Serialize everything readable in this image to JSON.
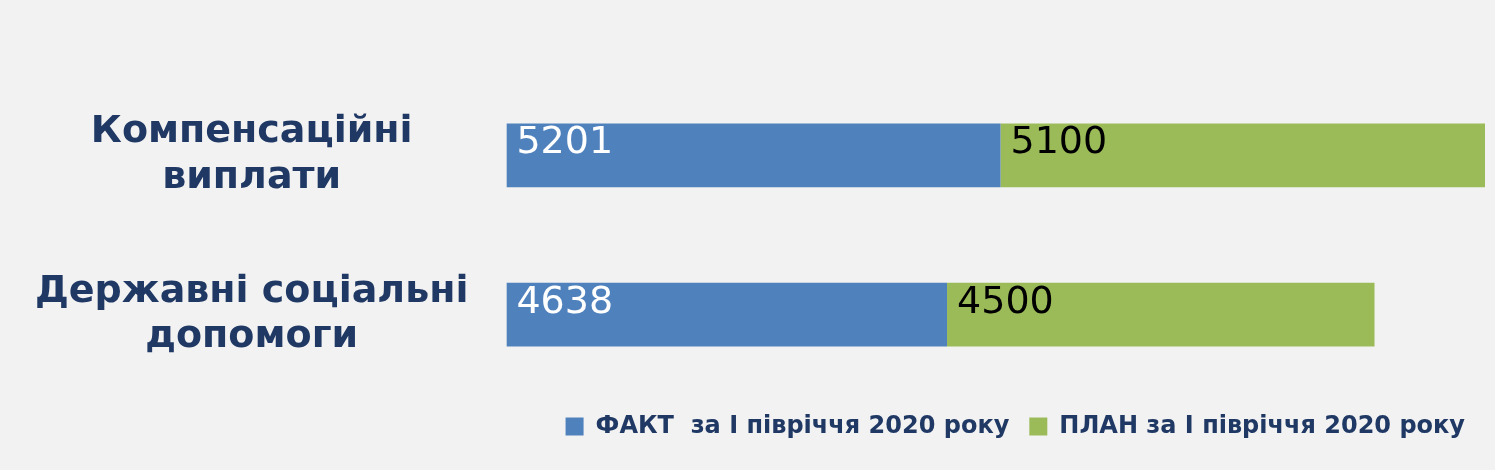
{
  "chart_data": {
    "type": "bar",
    "orientation": "horizontal",
    "stacked": true,
    "data_labels": true,
    "legend": "bottom right",
    "categories": [
      "Компенсаційні виплати",
      "Державні соціальні допомоги"
    ],
    "series": [
      {
        "name": "ФАКТ  за І півріччя 2020 року",
        "color": "#4f81bd",
        "values": [
          5201,
          4638
        ]
      },
      {
        "name": "ПЛАН за І півріччя 2020 року",
        "color": "#9bbb59",
        "values": [
          5100,
          4500
        ]
      }
    ]
  }
}
